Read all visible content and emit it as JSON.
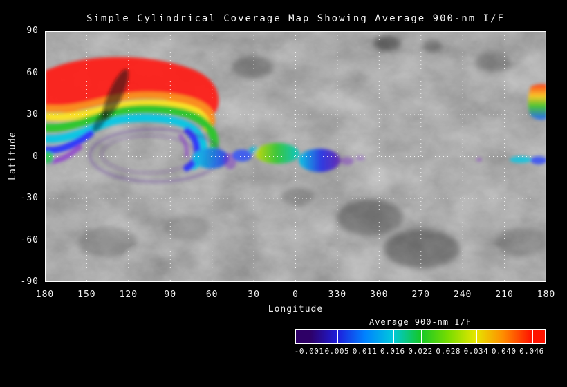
{
  "title": "Simple Cylindrical Coverage Map Showing Average 900-nm I/F",
  "axes": {
    "x_label": "Longitude",
    "y_label": "Latitude",
    "x_ticks": [
      "180",
      "150",
      "120",
      "90",
      "60",
      "30",
      "0",
      "330",
      "300",
      "270",
      "240",
      "210",
      "180"
    ],
    "y_ticks": [
      "90",
      "60",
      "30",
      "0",
      "-30",
      "-60",
      "-90"
    ]
  },
  "colorbar": {
    "title": "Average 900-nm I/F",
    "tick_labels": [
      "-0.001",
      "0.005",
      "0.011",
      "0.016",
      "0.022",
      "0.028",
      "0.034",
      "0.040",
      "0.046"
    ],
    "colors": [
      "#2e0066",
      "#1e1edc",
      "#0082ff",
      "#00c8dc",
      "#14c828",
      "#78dc00",
      "#e6e600",
      "#ff8c00",
      "#ff1400"
    ]
  },
  "chart_data": {
    "type": "heatmap",
    "title": "Simple Cylindrical Coverage Map Showing Average 900-nm I/F",
    "xlabel": "Longitude",
    "ylabel": "Latitude",
    "x_tick_labels": [
      "180",
      "150",
      "120",
      "90",
      "60",
      "30",
      "0",
      "330",
      "300",
      "270",
      "240",
      "210",
      "180"
    ],
    "x_axis_note": "longitude wraps westward 180 -> 0 -> 330 -> 180",
    "y_ticks": [
      90,
      60,
      30,
      0,
      -30,
      -60,
      -90
    ],
    "ylim": [
      -90,
      90
    ],
    "grid": true,
    "grid_style": "white dashed every 30 degrees",
    "background": "grayscale simple-cylindrical planetary basemap where no coverage exists",
    "legend": {
      "title": "Average 900-nm I/F",
      "ticks": [
        -0.001,
        0.005,
        0.011,
        0.016,
        0.022,
        0.028,
        0.034,
        0.04,
        0.046
      ],
      "position": "bottom-right",
      "colormap": "rainbow (violet low to red high)"
    },
    "coverage_regions": [
      {
        "desc": "large high-albedo arc (outer band)",
        "lon_range": [
          180,
          75
        ],
        "lat_range": [
          30,
          75
        ],
        "if_range": [
          0.04,
          0.046
        ],
        "color": "red"
      },
      {
        "desc": "inner fringe of arc",
        "lon_range": [
          180,
          65
        ],
        "lat_range": [
          25,
          45
        ],
        "if_range": [
          0.022,
          0.04
        ],
        "color": "orange-yellow-green"
      },
      {
        "desc": "western limb banded coverage",
        "lon_range": [
          180,
          162
        ],
        "lat_range": [
          0,
          35
        ],
        "if_range": [
          0.001,
          0.028
        ],
        "color": "green-cyan-blue-purple"
      },
      {
        "desc": "hook descending toward equator",
        "lon_range": [
          78,
          52
        ],
        "lat_range": [
          0,
          35
        ],
        "if_range": [
          0.005,
          0.034
        ],
        "color": "green-cyan-blue"
      },
      {
        "desc": "faint low-value inner arcs",
        "lon_range": [
          135,
          70
        ],
        "lat_range": [
          -10,
          15
        ],
        "if_range": [
          -0.001,
          0.005
        ],
        "color": "purple"
      },
      {
        "desc": "equatorial patch",
        "lon_range": [
          30,
          8
        ],
        "lat_range": [
          -5,
          10
        ],
        "if_range": [
          0.016,
          0.034
        ],
        "color": "yellow-green-cyan"
      },
      {
        "desc": "equatorial patch",
        "lon_range": [
          8,
          348
        ],
        "lat_range": [
          -8,
          8
        ],
        "if_range": [
          0.001,
          0.016
        ],
        "color": "cyan-blue-purple"
      },
      {
        "desc": "eastern limb patch",
        "lon_range": [
          190,
          180
        ],
        "lat_range": [
          25,
          50
        ],
        "if_range": [
          0.005,
          0.046
        ],
        "color": "red-yellow-green-blue stacked"
      },
      {
        "desc": "eastern equatorial slivers",
        "lon_range": [
          205,
          180
        ],
        "lat_range": [
          -3,
          4
        ],
        "if_range": [
          0.005,
          0.016
        ],
        "color": "cyan-blue"
      },
      {
        "desc": "western edge equatorial speck",
        "lon_range": [
          180,
          178
        ],
        "lat_range": [
          -3,
          5
        ],
        "if_range": [
          0.016,
          0.022
        ],
        "color": "green"
      }
    ]
  }
}
